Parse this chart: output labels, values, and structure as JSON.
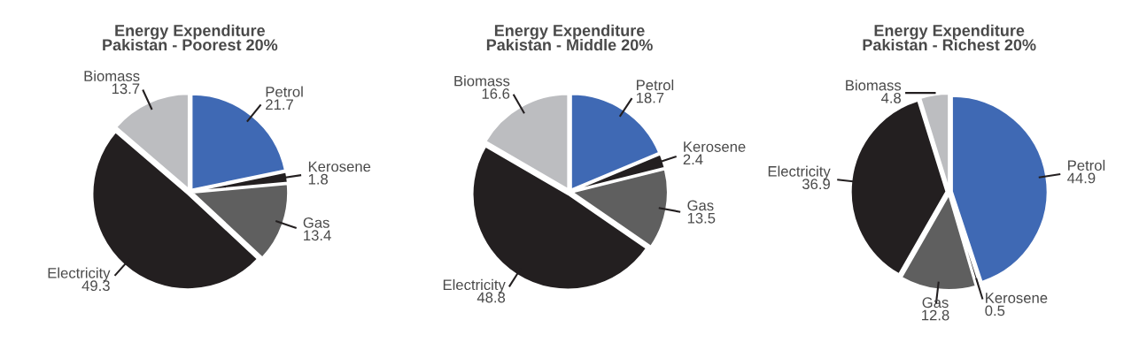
{
  "chart_data": [
    {
      "type": "pie",
      "title": "Energy Expenditure\nPakistan - Poorest 20%",
      "categories": [
        "Petrol",
        "Kerosene",
        "Gas",
        "Electricity",
        "Biomass"
      ],
      "values": [
        21.7,
        1.8,
        13.4,
        49.3,
        13.7
      ],
      "colors": [
        "#3f69b4",
        "#231f20",
        "#5f5f5f",
        "#231f20",
        "#bcbdc0"
      ],
      "data_labels": true
    },
    {
      "type": "pie",
      "title": "Energy Expenditure\nPakistan - Middle 20%",
      "categories": [
        "Petrol",
        "Kerosene",
        "Gas",
        "Electricity",
        "Biomass"
      ],
      "values": [
        18.7,
        2.4,
        13.5,
        48.8,
        16.6
      ],
      "colors": [
        "#3f69b4",
        "#231f20",
        "#5f5f5f",
        "#231f20",
        "#bcbdc0"
      ],
      "data_labels": true
    },
    {
      "type": "pie",
      "title": "Energy Expenditure\nPakistan - Richest 20%",
      "categories": [
        "Petrol",
        "Kerosene",
        "Gas",
        "Electricity",
        "Biomass"
      ],
      "values": [
        44.9,
        0.5,
        12.8,
        36.9,
        4.8
      ],
      "colors": [
        "#3f69b4",
        "#231f20",
        "#5f5f5f",
        "#231f20",
        "#bcbdc0"
      ],
      "data_labels": true
    }
  ]
}
